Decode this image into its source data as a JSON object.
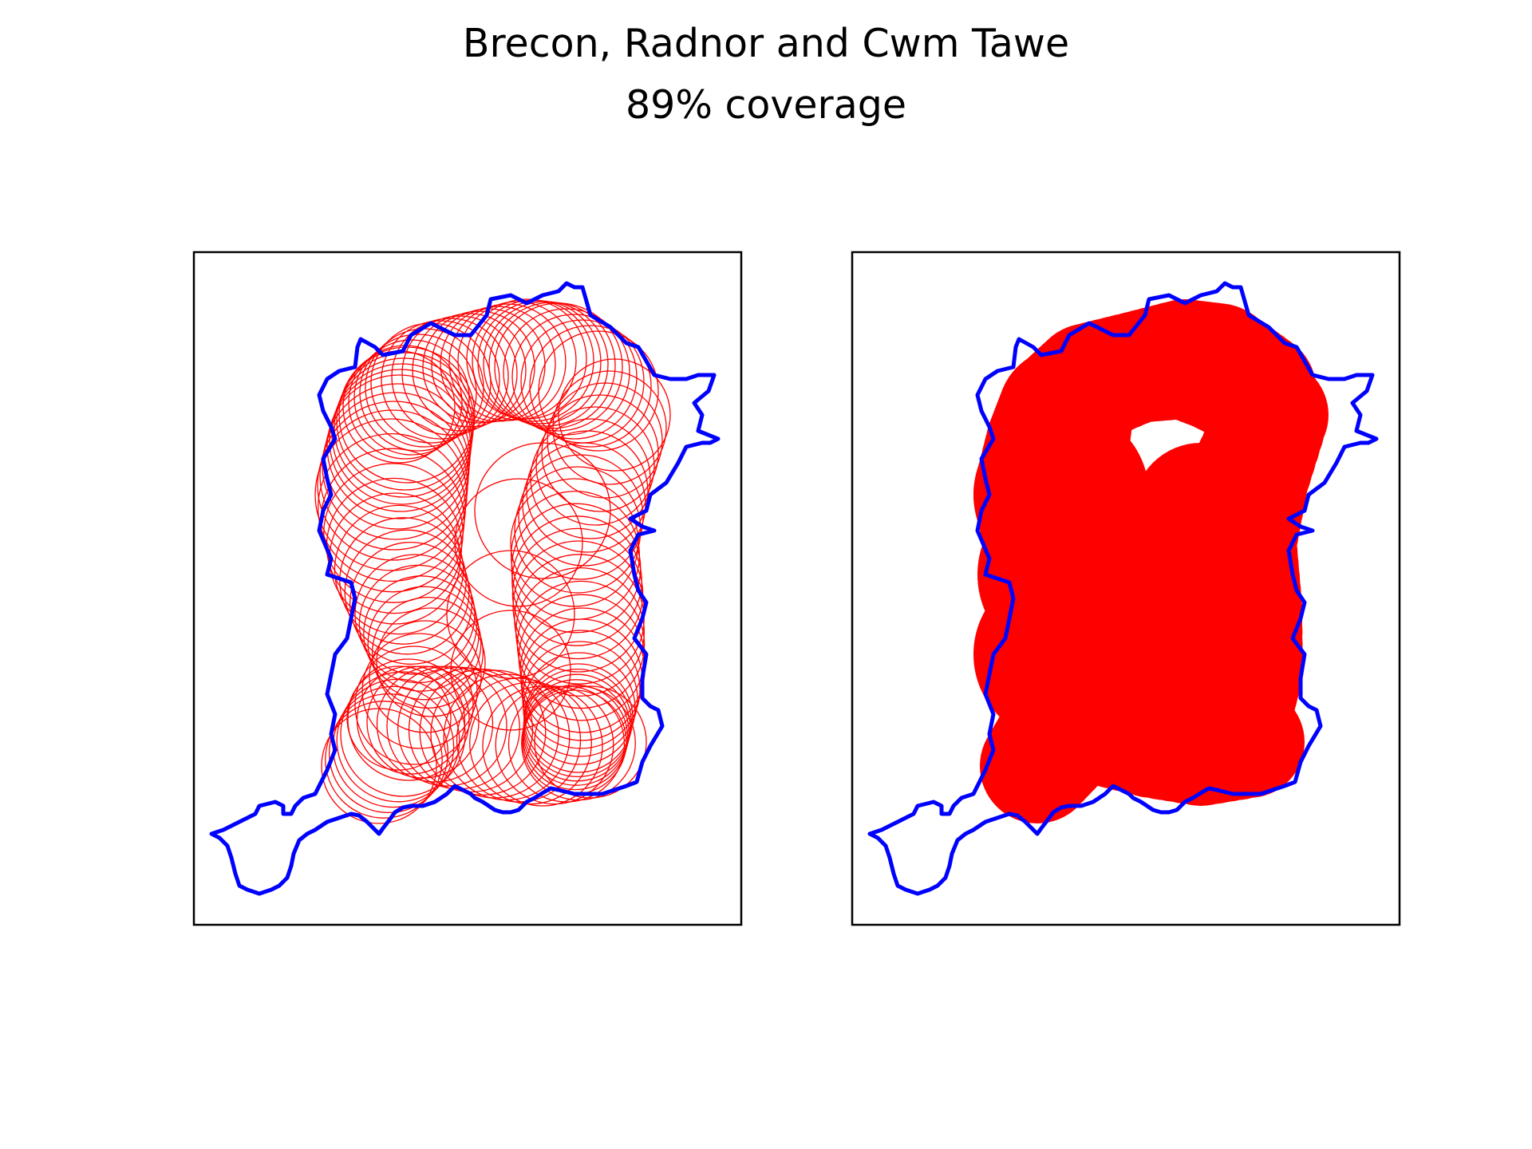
{
  "figure": {
    "title": "Brecon, Radnor and Cwm Tawe",
    "subtitle": "89% coverage"
  },
  "colors": {
    "boundary": "#0000ff",
    "coverage": "#ff0000",
    "frame": "#000000",
    "background": "#ffffff"
  },
  "panels": [
    {
      "name": "coverage-circles-panel",
      "style": "outline-circles"
    },
    {
      "name": "coverage-union-panel",
      "style": "filled-union"
    }
  ]
}
